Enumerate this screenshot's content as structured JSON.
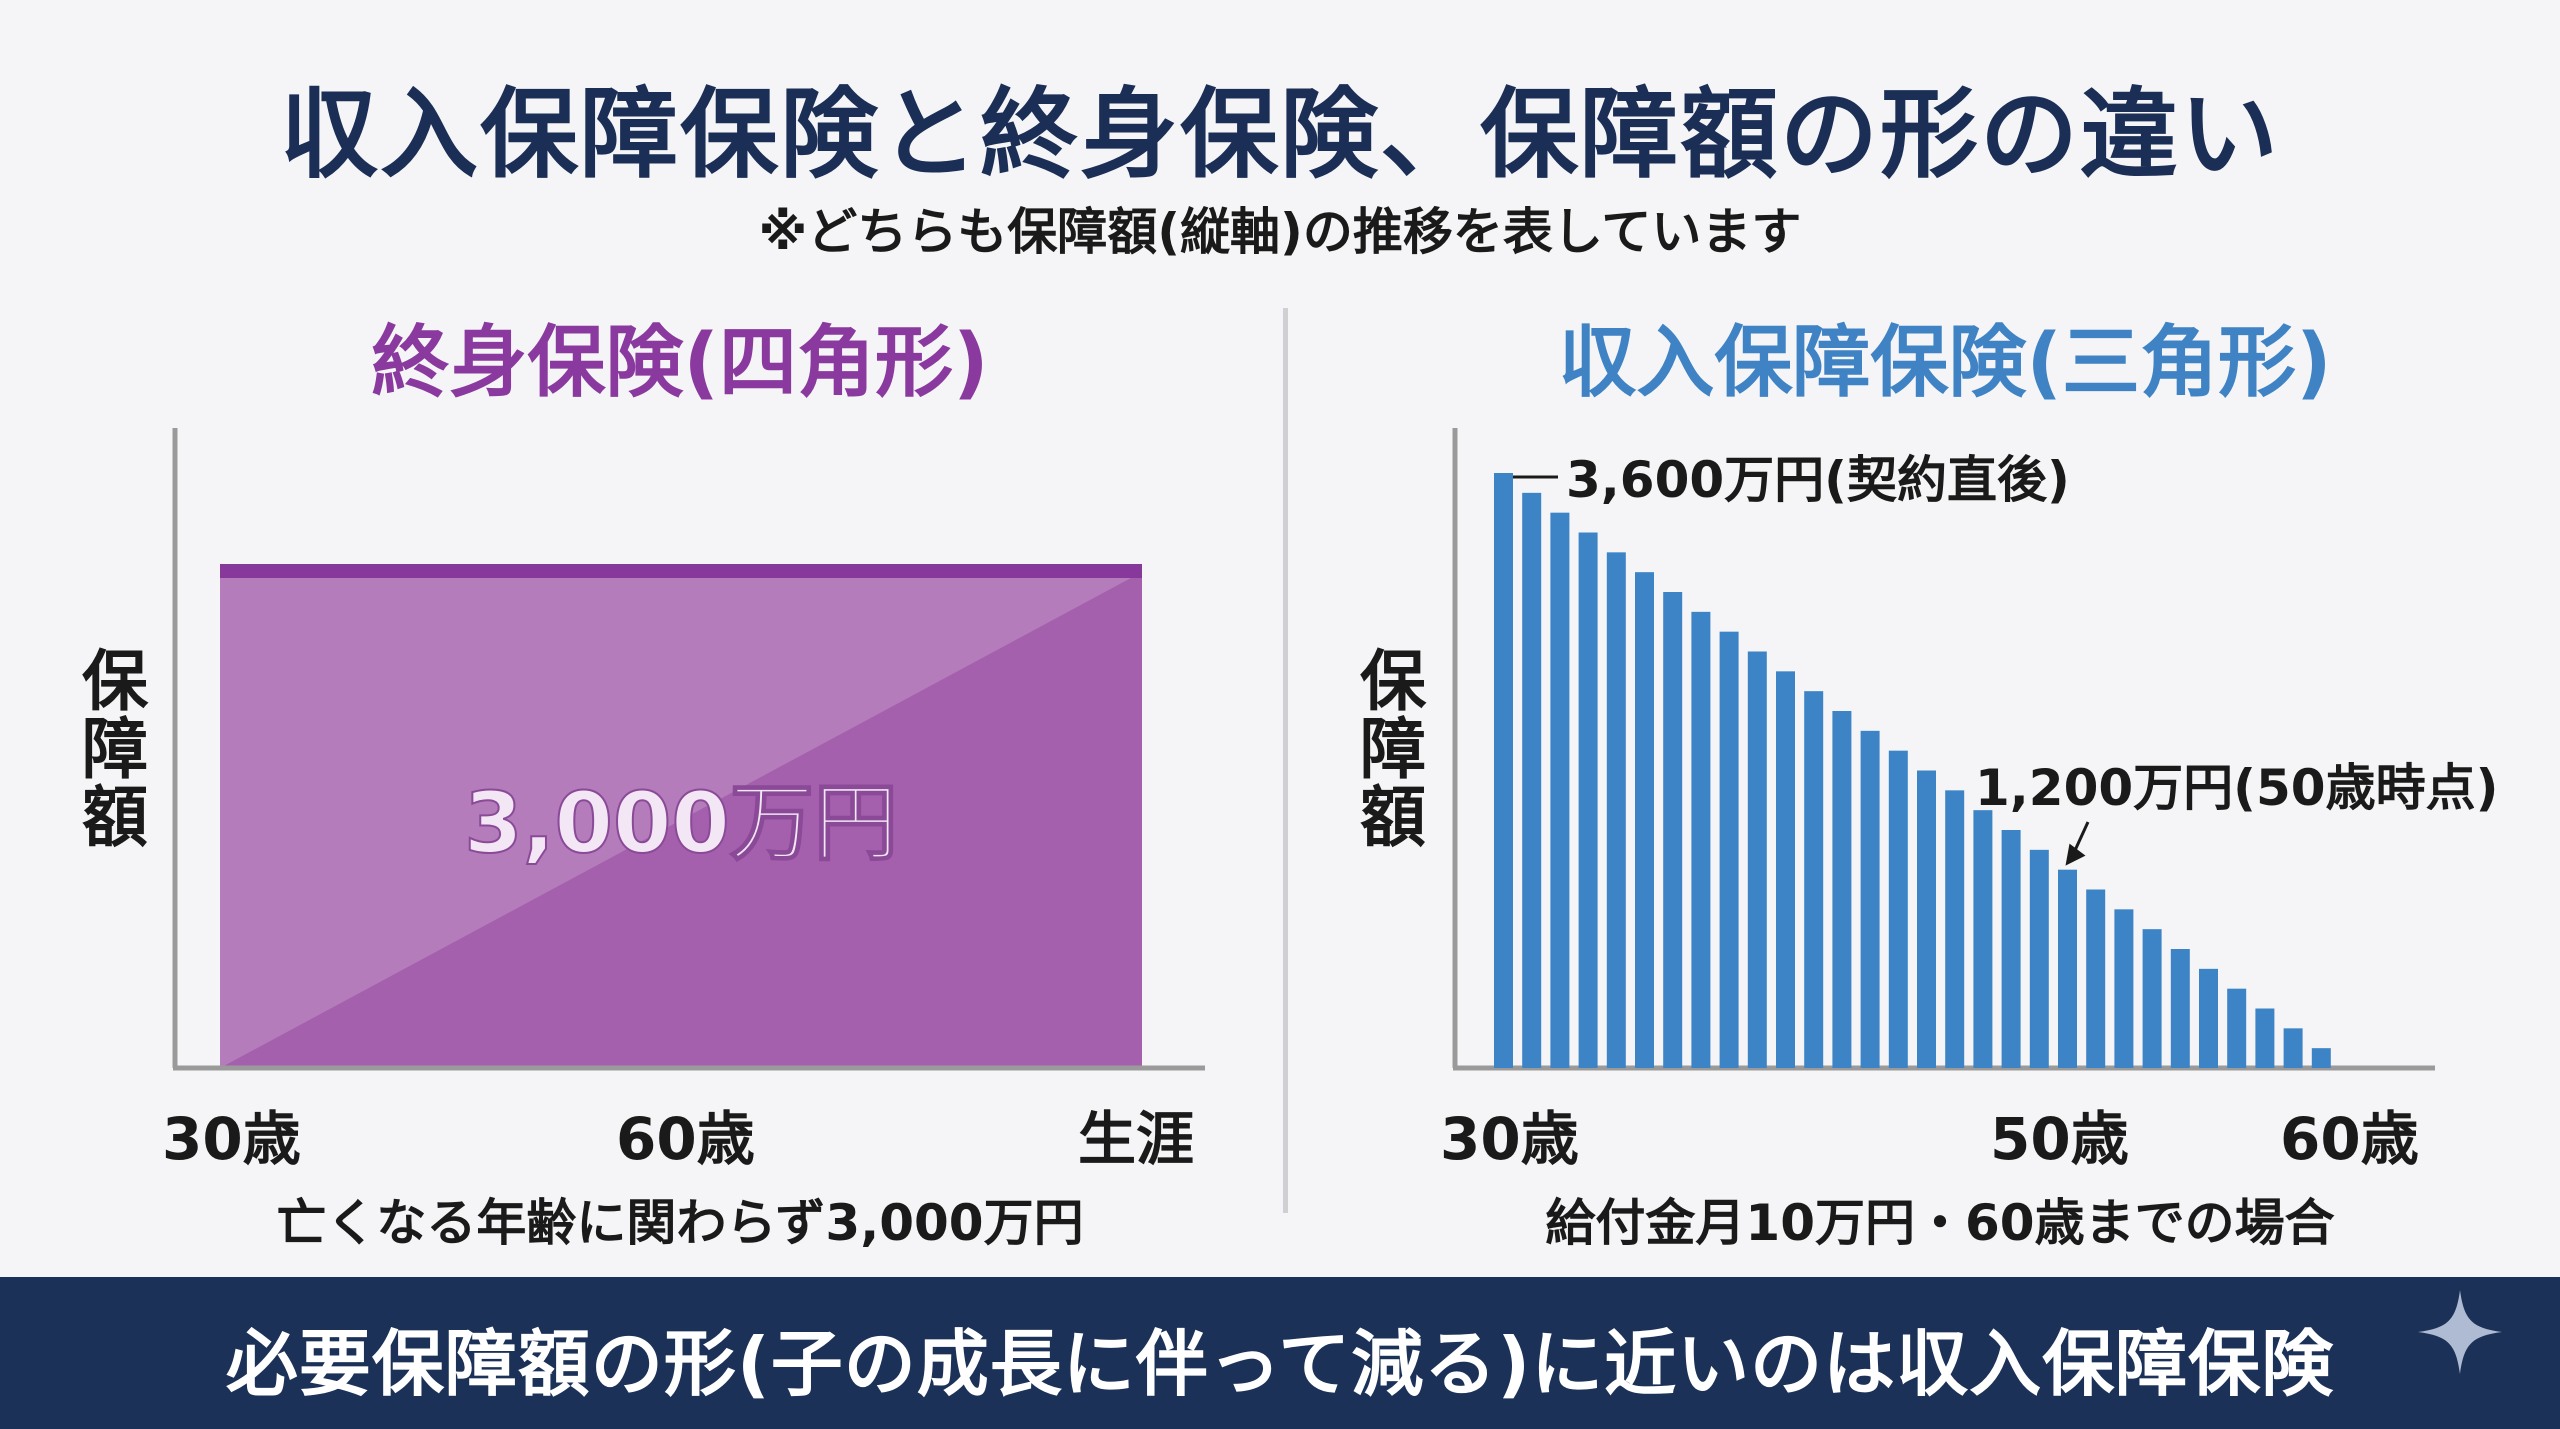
{
  "title": "収入保障保険と終身保険、保障額の形の違い",
  "subtitle": "※どちらも保障額(縦軸)の推移を表しています",
  "left_panel": {
    "title": "終身保険(四角形)",
    "ylabel": "保障額",
    "center_label": "3,000万円",
    "ticks": [
      "30歳",
      "60歳",
      "生涯"
    ],
    "caption": "亡くなる年齢に関わらず3,000万円",
    "color": "#a560ad"
  },
  "right_panel": {
    "title": "収入保障保険(三角形)",
    "ylabel": "保障額",
    "ticks": [
      "30歳",
      "50歳",
      "60歳"
    ],
    "caption": "給付金月10万円・60歳までの場合",
    "annotation_top": "3,600万円(契約直後)",
    "annotation_mid": "1,200万円(50歳時点)",
    "color": "#3d84c6"
  },
  "banner": "必要保障額の形(子の成長に伴って減る)に近いのは収入保障保険",
  "chart_data": [
    {
      "type": "area",
      "title": "終身保険(四角形)",
      "ylabel": "保障額",
      "categories": [
        "30歳",
        "60歳",
        "生涯"
      ],
      "values": [
        3000,
        3000,
        3000
      ],
      "unit": "万円"
    },
    {
      "type": "bar",
      "title": "収入保障保険(三角形)",
      "ylabel": "保障額",
      "x": [
        30,
        31,
        32,
        33,
        34,
        35,
        36,
        37,
        38,
        39,
        40,
        41,
        42,
        43,
        44,
        45,
        46,
        47,
        48,
        49,
        50,
        51,
        52,
        53,
        54,
        55,
        56,
        57,
        58,
        59
      ],
      "values": [
        3600,
        3480,
        3360,
        3240,
        3120,
        3000,
        2880,
        2760,
        2640,
        2520,
        2400,
        2280,
        2160,
        2040,
        1920,
        1800,
        1680,
        1560,
        1440,
        1320,
        1200,
        1080,
        960,
        840,
        720,
        600,
        480,
        360,
        240,
        120
      ],
      "xticks": [
        "30歳",
        "50歳",
        "60歳"
      ],
      "ylim": [
        0,
        3600
      ],
      "unit": "万円"
    }
  ]
}
